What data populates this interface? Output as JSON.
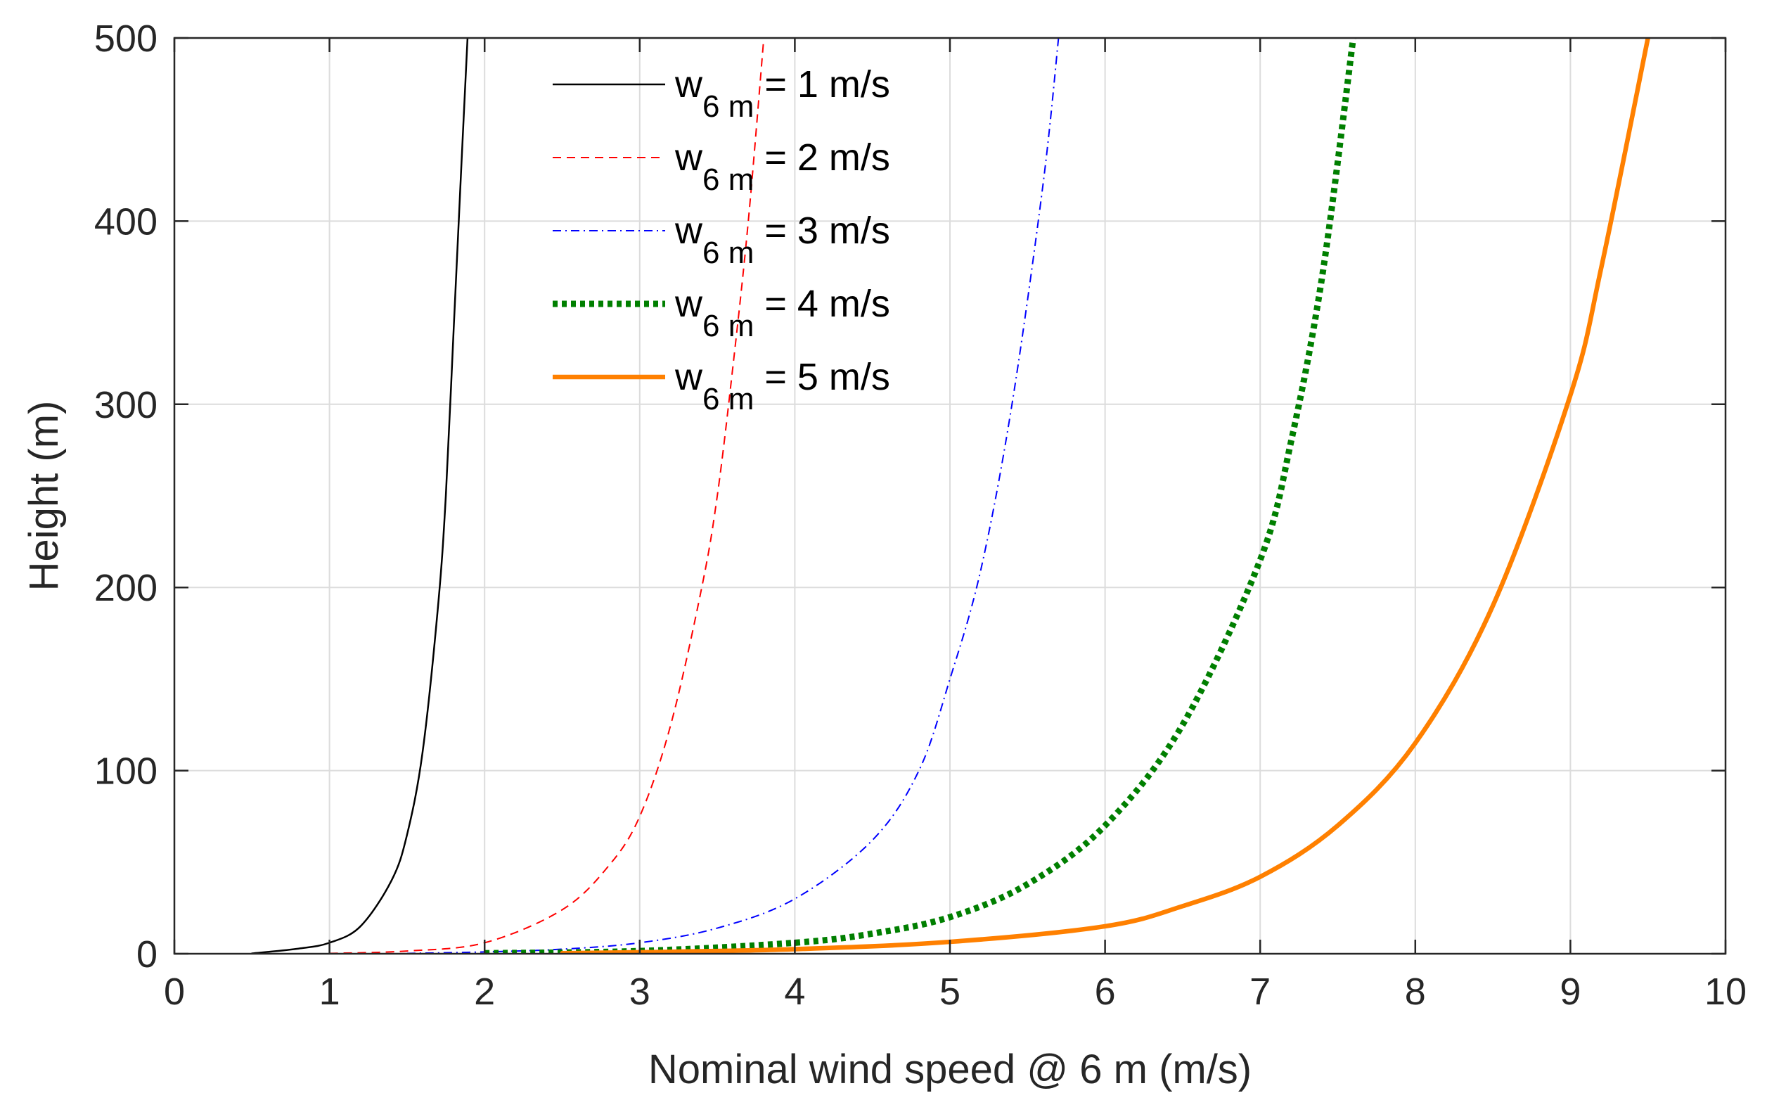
{
  "chart_data": {
    "type": "line",
    "title": "",
    "xlabel": "Nominal wind speed @ 6 m (m/s)",
    "ylabel": "Height (m)",
    "xlim": [
      0,
      10
    ],
    "ylim": [
      0,
      500
    ],
    "xticks": [
      "0",
      "1",
      "2",
      "3",
      "4",
      "5",
      "6",
      "7",
      "8",
      "9",
      "10"
    ],
    "yticks": [
      "0",
      "100",
      "200",
      "300",
      "400",
      "500"
    ],
    "grid": true,
    "legend_position": "top-center",
    "series": [
      {
        "name": "w6 m = 1 m/s",
        "legend_base": "w",
        "legend_sub": "6 m",
        "legend_rest": " = 1 m/s",
        "color": "#000000",
        "style": "solid",
        "x": [
          0.5,
          0.8,
          1.0,
          1.2,
          1.4,
          1.5,
          1.6,
          1.7,
          1.75,
          1.8,
          1.85,
          1.89
        ],
        "y": [
          0.2,
          2.8,
          6.0,
          15.0,
          40.0,
          65.0,
          110.0,
          190.0,
          250.0,
          340.0,
          430.0,
          500.0
        ]
      },
      {
        "name": "w6 m = 2 m/s",
        "legend_base": "w",
        "legend_sub": "6 m",
        "legend_rest": " = 2 m/s",
        "color": "#ff0000",
        "style": "dashed",
        "x": [
          1.0,
          1.5,
          2.0,
          2.5,
          2.8,
          3.0,
          3.2,
          3.4,
          3.5,
          3.6,
          3.7,
          3.8
        ],
        "y": [
          0.2,
          1.5,
          6.0,
          24.0,
          48.0,
          75.0,
          125.0,
          200.0,
          250.0,
          320.0,
          400.0,
          500.0
        ]
      },
      {
        "name": "w6 m = 3 m/s",
        "legend_base": "w",
        "legend_sub": "6 m",
        "legend_rest": " = 3 m/s",
        "color": "#0000ff",
        "style": "dashdot",
        "x": [
          1.5,
          2.0,
          2.5,
          3.0,
          3.5,
          4.0,
          4.5,
          4.8,
          5.0,
          5.2,
          5.4,
          5.6,
          5.7
        ],
        "y": [
          0.2,
          1.0,
          2.5,
          6.0,
          14.0,
          30.0,
          62.0,
          100.0,
          150.0,
          210.0,
          300.0,
          420.0,
          500.0
        ]
      },
      {
        "name": "w6 m = 4 m/s",
        "legend_base": "w",
        "legend_sub": "6 m",
        "legend_rest": " = 4 m/s",
        "color": "#007f00",
        "style": "dotted",
        "x": [
          2.0,
          3.0,
          4.0,
          4.5,
          5.0,
          5.5,
          6.0,
          6.5,
          7.0,
          7.2,
          7.4,
          7.6
        ],
        "y": [
          0.3,
          1.5,
          6.0,
          11.0,
          20.0,
          38.0,
          70.0,
          125.0,
          215.0,
          280.0,
          370.0,
          500.0
        ]
      },
      {
        "name": "w6 m = 5 m/s",
        "legend_base": "w",
        "legend_sub": "6 m",
        "legend_rest": " = 5 m/s",
        "color": "#ff8000",
        "style": "solid-thick",
        "x": [
          2.5,
          3.0,
          4.0,
          5.0,
          6.0,
          6.5,
          7.0,
          7.5,
          8.0,
          8.5,
          9.0,
          9.2,
          9.5
        ],
        "y": [
          0.3,
          0.8,
          2.5,
          6.5,
          15.0,
          26.0,
          42.0,
          70.0,
          115.0,
          190.0,
          305.0,
          375.0,
          500.0
        ]
      }
    ]
  }
}
